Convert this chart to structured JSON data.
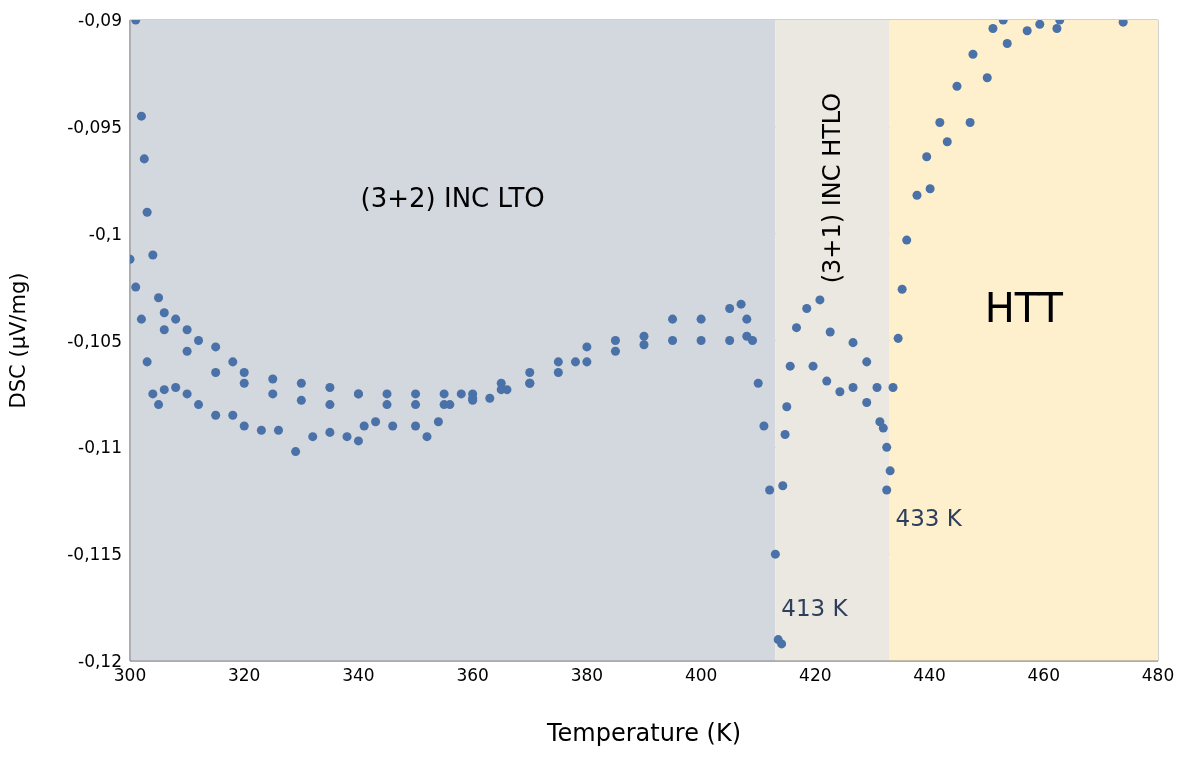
{
  "chart_data": {
    "type": "scatter",
    "xlabel": "Temperature (K)",
    "ylabel": "DSC (µV/mg)",
    "xlim": [
      300,
      480
    ],
    "xticks": [
      300,
      320,
      340,
      360,
      380,
      400,
      420,
      440,
      460,
      480
    ],
    "ylim": [
      -0.12,
      -0.09
    ],
    "yticks": [
      {
        "value": -0.12,
        "label": "-0,12"
      },
      {
        "value": -0.115,
        "label": "-0,115"
      },
      {
        "value": -0.11,
        "label": "-0,11"
      },
      {
        "value": -0.105,
        "label": "-0,105"
      },
      {
        "value": -0.1,
        "label": "-0,1"
      },
      {
        "value": -0.095,
        "label": "-0,095"
      },
      {
        "value": -0.09,
        "label": "-0,09"
      }
    ],
    "grid": true,
    "marker": "circle",
    "bands": [
      {
        "axis": "x",
        "from": 300,
        "to": 413,
        "label": "(3+2) INC LTO",
        "color": "#d3d7de"
      },
      {
        "axis": "x",
        "from": 413,
        "to": 433,
        "label": "(3+1) INC HTLO",
        "color": "#ebe8e1"
      },
      {
        "axis": "x",
        "from": 433,
        "to": 480,
        "label": "HTT",
        "color": "#fef0cd"
      }
    ],
    "annotations": [
      {
        "text": "413 K",
        "x": 413,
        "y": -0.1175
      },
      {
        "text": "433 K",
        "x": 433,
        "y": -0.1133
      }
    ],
    "series": [
      {
        "color": "#4a72a8",
        "x": [
          301,
          302,
          302.5,
          303,
          304,
          305,
          306,
          308,
          310,
          312,
          315,
          318,
          320,
          325,
          330,
          335,
          340,
          345,
          350,
          355,
          360,
          365,
          370,
          375,
          378,
          380,
          385,
          390,
          395,
          400,
          405,
          407,
          408,
          409,
          410,
          411,
          412,
          413,
          413.5,
          306,
          310,
          315,
          320,
          325,
          330,
          335,
          340,
          345,
          350,
          355,
          360,
          365,
          370,
          375,
          380,
          385,
          390,
          395,
          400,
          405,
          408,
          300,
          301,
          302,
          303,
          304,
          305,
          306,
          308,
          310,
          312,
          315,
          318,
          320,
          323,
          326,
          329,
          332,
          335,
          338,
          340,
          341,
          343,
          346,
          350,
          352,
          354,
          356,
          358,
          360,
          363,
          366,
          370,
          414.1,
          414.3,
          414.7,
          415.0,
          415.6,
          416.7,
          418.5,
          420.8,
          422.6,
          426.6,
          429.0,
          430.8,
          431.9,
          432.5,
          432.5,
          419.6,
          422.0,
          424.3,
          426.6,
          429.0,
          431.3,
          433.1,
          433.6,
          434.5,
          435.2,
          436.0,
          437.8,
          439.5,
          441.8,
          444.8,
          447.6,
          451.1,
          452.9,
          440.1,
          443.1,
          447.1,
          450.1,
          453.6,
          457.1,
          459.3,
          462.3,
          462.8,
          473.9
        ],
        "values": [
          -0.09,
          -0.0945,
          -0.0965,
          -0.099,
          -0.101,
          -0.103,
          -0.1037,
          -0.104,
          -0.1045,
          -0.105,
          -0.1053,
          -0.106,
          -0.1065,
          -0.1068,
          -0.107,
          -0.1072,
          -0.1075,
          -0.1075,
          -0.1075,
          -0.1075,
          -0.1075,
          -0.107,
          -0.1065,
          -0.106,
          -0.106,
          -0.1053,
          -0.105,
          -0.1048,
          -0.104,
          -0.104,
          -0.1035,
          -0.1033,
          -0.104,
          -0.105,
          -0.107,
          -0.109,
          -0.112,
          -0.115,
          -0.119,
          -0.1045,
          -0.1055,
          -0.1065,
          -0.107,
          -0.1075,
          -0.1078,
          -0.108,
          -0.1075,
          -0.108,
          -0.108,
          -0.108,
          -0.1078,
          -0.1073,
          -0.107,
          -0.1065,
          -0.106,
          -0.1055,
          -0.1052,
          -0.105,
          -0.105,
          -0.105,
          -0.1048,
          -0.1012,
          -0.1025,
          -0.104,
          -0.106,
          -0.1075,
          -0.108,
          -0.1073,
          -0.1072,
          -0.1075,
          -0.108,
          -0.1085,
          -0.1085,
          -0.109,
          -0.1092,
          -0.1092,
          -0.1102,
          -0.1095,
          -0.1093,
          -0.1095,
          -0.1097,
          -0.109,
          -0.1088,
          -0.109,
          -0.109,
          -0.1095,
          -0.1088,
          -0.108,
          -0.1075,
          -0.1077,
          -0.1077,
          -0.1073,
          -0.107,
          -0.1192,
          -0.1118,
          -0.1094,
          -0.1081,
          -0.1062,
          -0.1044,
          -0.1035,
          -0.1031,
          -0.1046,
          -0.1051,
          -0.106,
          -0.1072,
          -0.1091,
          -0.11,
          -0.112,
          -0.1062,
          -0.1069,
          -0.1074,
          -0.1072,
          -0.1079,
          -0.1088,
          -0.1111,
          -0.1072,
          -0.1049,
          -0.1026,
          -0.1003,
          -0.0982,
          -0.0964,
          -0.0948,
          -0.0931,
          -0.0916,
          -0.0904,
          -0.09,
          -0.0979,
          -0.0957,
          -0.0948,
          -0.0927,
          -0.0911,
          -0.0905,
          -0.0902,
          -0.0904,
          -0.09,
          -0.0901
        ]
      }
    ]
  }
}
